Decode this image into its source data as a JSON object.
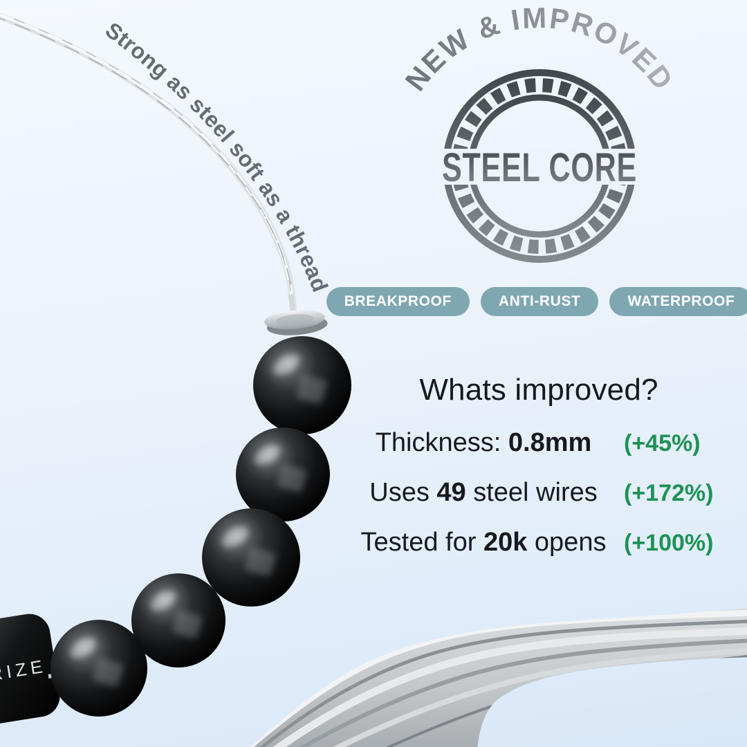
{
  "tagline": {
    "text": "Strong as steel soft as a thread"
  },
  "stamp": {
    "arc_label": "NEW & IMPROVED",
    "center_label": "STEEL CORE"
  },
  "feature_badges": [
    {
      "label": "BREAKPROOF"
    },
    {
      "label": "ANTI-RUST"
    },
    {
      "label": "WATERPROOF"
    }
  ],
  "improvements": {
    "heading": "Whats improved?",
    "rows": [
      {
        "prefix": "Thickness: ",
        "highlight": "0.8mm",
        "suffix": "",
        "delta": "(+45%)"
      },
      {
        "prefix": "Uses ",
        "highlight": "49",
        "suffix": " steel wires",
        "delta": "(+172%)"
      },
      {
        "prefix": "Tested for ",
        "highlight": "20k",
        "suffix": " opens",
        "delta": "(+100%)"
      }
    ]
  },
  "product": {
    "engraving": "RIZE"
  },
  "colors": {
    "pill_bg": "#7FA7B2",
    "delta_green": "#1E9254",
    "stamp_gray_dark": "#44494E",
    "stamp_gray_light": "#84898D",
    "arc_text_gray": "#8F9498",
    "tagline_gray": "#666C71",
    "background_top": "#F4F9FD",
    "background_bottom": "#D8E7F8"
  }
}
